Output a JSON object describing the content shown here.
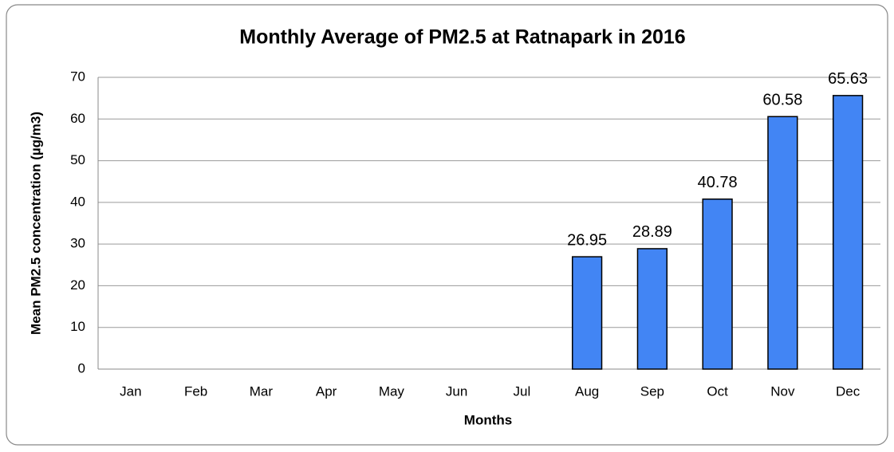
{
  "chart_data": {
    "type": "bar",
    "title": "Monthly Average of PM2.5 at Ratnapark in 2016",
    "x_label": "Months",
    "y_label": "Mean PM2.5 concentration (µg/m3)",
    "categories": [
      "Jan",
      "Feb",
      "Mar",
      "Apr",
      "May",
      "Jun",
      "Jul",
      "Aug",
      "Sep",
      "Oct",
      "Nov",
      "Dec"
    ],
    "values": [
      null,
      null,
      null,
      null,
      null,
      null,
      null,
      26.95,
      28.89,
      40.78,
      60.58,
      65.63
    ],
    "color": "#4285f4",
    "ylim": [
      0,
      70
    ],
    "yticks": [
      0,
      10,
      20,
      30,
      40,
      50,
      60,
      70
    ],
    "grid": true
  }
}
